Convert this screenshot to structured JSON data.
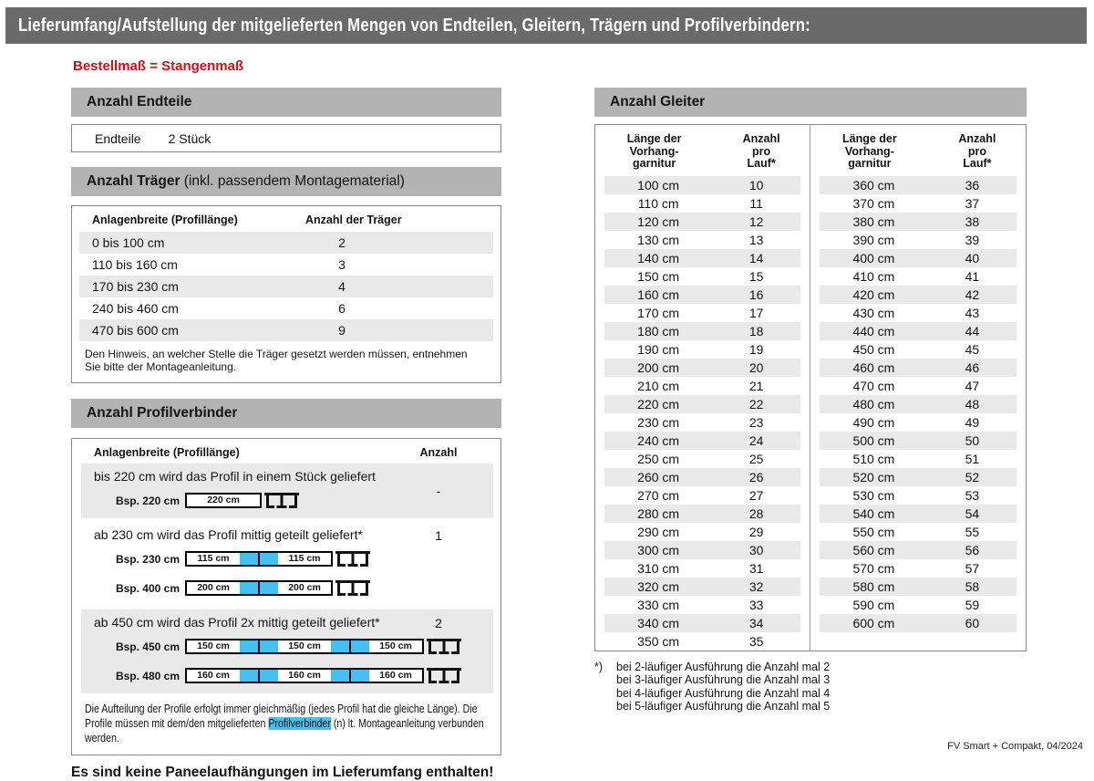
{
  "page": {
    "title": "Lieferumfang/Aufstellung der mitgelieferten Mengen von Endteilen, Gleitern, Trägern und Profilverbindern:",
    "subtitle": "Bestellmaß = Stangenmaß",
    "no_panel_note": "Es sind keine Paneelaufhängungen im Lieferumfang enthalten!",
    "footer": "FV Smart + Compakt, 04/2024"
  },
  "colors": {
    "title_bar": "#6a6a6a",
    "section_header": "#b3b3b3",
    "row_stripe": "#e9e9e9",
    "accent_red": "#c8131c",
    "connector_blue": "#45c1ef"
  },
  "endteile": {
    "header": "Anzahl Endteile",
    "label": "Endteile",
    "value": "2 Stück"
  },
  "traeger": {
    "header_bold": "Anzahl Träger",
    "header_suffix": " (inkl. passendem Montagematerial)",
    "col1": "Anlagenbreite (Profillänge)",
    "col2": "Anzahl der Träger",
    "rows": [
      {
        "range": "0 bis 100 cm",
        "count": "2"
      },
      {
        "range": "110 bis 160 cm",
        "count": "3"
      },
      {
        "range": "170 bis 230 cm",
        "count": "4"
      },
      {
        "range": "240 bis 460 cm",
        "count": "6"
      },
      {
        "range": "470 bis 600 cm",
        "count": "9"
      }
    ],
    "note": "Den Hinweis, an welcher Stelle die Träger gesetzt werden müssen, entnehmen Sie bitte der Montageanleitung."
  },
  "profilverbinder": {
    "header": "Anzahl Profilverbinder",
    "col1": "Anlagenbreite (Profillänge)",
    "col2": "Anzahl",
    "rows": [
      {
        "text": "bis 220 cm wird das Profil in einem Stück geliefert",
        "count": "-",
        "diagrams": [
          {
            "label": "Bsp. 220 cm",
            "segments": [
              "220 cm"
            ]
          }
        ]
      },
      {
        "text": "ab 230 cm wird das Profil mittig geteilt geliefert*",
        "count": "1",
        "diagrams": [
          {
            "label": "Bsp. 230 cm",
            "segments": [
              "115 cm",
              "115 cm"
            ]
          },
          {
            "label": "Bsp. 400 cm",
            "segments": [
              "200 cm",
              "200 cm"
            ]
          }
        ]
      },
      {
        "text": "ab 450 cm wird das Profil 2x mittig geteilt geliefert*",
        "count": "2",
        "diagrams": [
          {
            "label": "Bsp. 450 cm",
            "segments": [
              "150 cm",
              "150 cm",
              "150 cm"
            ]
          },
          {
            "label": "Bsp. 480 cm",
            "segments": [
              "160 cm",
              "160 cm",
              "160 cm"
            ]
          }
        ]
      }
    ],
    "note_before": "Die Aufteilung der Profile erfolgt immer gleichmäßig (jedes Profil hat die gleiche Länge). Die Profile müssen mit dem/den mitgelieferten ",
    "note_highlight": "Profilverbinder",
    "note_after": " (n) lt. Montageanleitung verbunden werden."
  },
  "gleiter": {
    "header": "Anzahl Gleiter",
    "col1_lines": [
      "Länge der",
      "Vorhang-",
      "garnitur"
    ],
    "col2_lines": [
      "Anzahl",
      "pro",
      "Lauf*"
    ],
    "left_rows": [
      [
        "100 cm",
        "10"
      ],
      [
        "110 cm",
        "11"
      ],
      [
        "120 cm",
        "12"
      ],
      [
        "130 cm",
        "13"
      ],
      [
        "140 cm",
        "14"
      ],
      [
        "150 cm",
        "15"
      ],
      [
        "160 cm",
        "16"
      ],
      [
        "170 cm",
        "17"
      ],
      [
        "180 cm",
        "18"
      ],
      [
        "190 cm",
        "19"
      ],
      [
        "200 cm",
        "20"
      ],
      [
        "210 cm",
        "21"
      ],
      [
        "220 cm",
        "22"
      ],
      [
        "230 cm",
        "23"
      ],
      [
        "240 cm",
        "24"
      ],
      [
        "250 cm",
        "25"
      ],
      [
        "260 cm",
        "26"
      ],
      [
        "270 cm",
        "27"
      ],
      [
        "280 cm",
        "28"
      ],
      [
        "290 cm",
        "29"
      ],
      [
        "300 cm",
        "30"
      ],
      [
        "310 cm",
        "31"
      ],
      [
        "320 cm",
        "32"
      ],
      [
        "330 cm",
        "33"
      ],
      [
        "340 cm",
        "34"
      ],
      [
        "350 cm",
        "35"
      ]
    ],
    "right_rows": [
      [
        "360 cm",
        "36"
      ],
      [
        "370 cm",
        "37"
      ],
      [
        "380 cm",
        "38"
      ],
      [
        "390 cm",
        "39"
      ],
      [
        "400 cm",
        "40"
      ],
      [
        "410 cm",
        "41"
      ],
      [
        "420 cm",
        "42"
      ],
      [
        "430 cm",
        "43"
      ],
      [
        "440 cm",
        "44"
      ],
      [
        "450 cm",
        "45"
      ],
      [
        "460 cm",
        "46"
      ],
      [
        "470 cm",
        "47"
      ],
      [
        "480 cm",
        "48"
      ],
      [
        "490 cm",
        "49"
      ],
      [
        "500 cm",
        "50"
      ],
      [
        "510 cm",
        "51"
      ],
      [
        "520 cm",
        "52"
      ],
      [
        "530 cm",
        "53"
      ],
      [
        "540 cm",
        "54"
      ],
      [
        "550 cm",
        "55"
      ],
      [
        "560 cm",
        "56"
      ],
      [
        "570 cm",
        "57"
      ],
      [
        "580 cm",
        "58"
      ],
      [
        "590 cm",
        "59"
      ],
      [
        "600 cm",
        "60"
      ]
    ],
    "footnote_marker": "*)",
    "footnotes": [
      "bei 2-läufiger Ausführung die Anzahl mal 2",
      "bei 3-läufiger Ausführung die Anzahl mal 3",
      "bei 4-läufiger Ausführung die Anzahl mal 4",
      "bei 5-läufiger Ausführung die Anzahl mal 5"
    ]
  }
}
